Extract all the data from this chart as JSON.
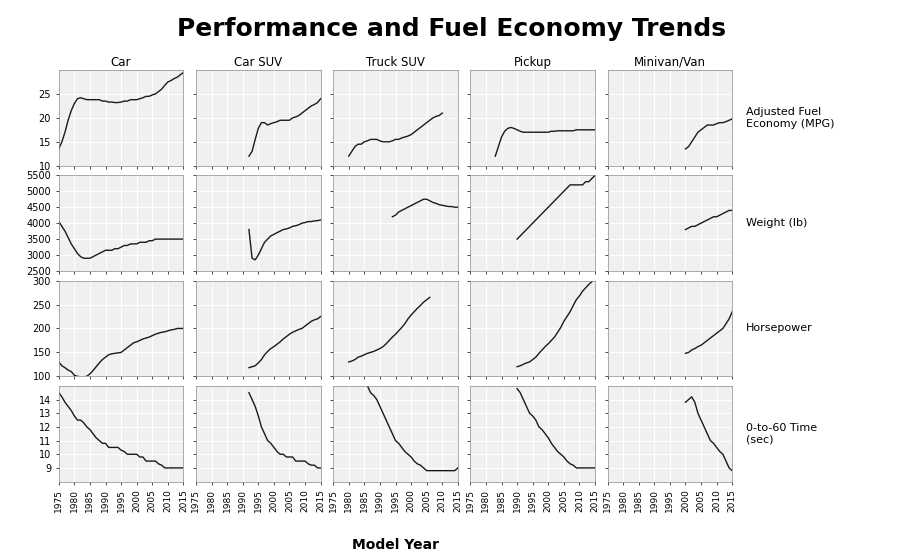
{
  "title": "Performance and Fuel Economy Trends",
  "col_labels": [
    "Car",
    "Car SUV",
    "Truck SUV",
    "Pickup",
    "Minivan/Van"
  ],
  "row_labels": [
    "Adjusted Fuel\nEconomy (MPG)",
    "Weight (lb)",
    "Horsepower",
    "0-to-60 Time\n(sec)"
  ],
  "xlabel": "Model Year",
  "xticks": [
    1975,
    1980,
    1985,
    1990,
    1995,
    2000,
    2005,
    2010,
    2015
  ],
  "ylims": {
    "mpg": [
      10,
      30
    ],
    "weight": [
      2500,
      5500
    ],
    "hp": [
      100,
      300
    ],
    "time060": [
      8,
      15
    ]
  },
  "yticks": {
    "mpg": [
      10,
      15,
      20,
      25
    ],
    "weight": [
      2500,
      3000,
      3500,
      4000,
      4500,
      5000,
      5500
    ],
    "hp": [
      100,
      150,
      200,
      250,
      300
    ],
    "time060": [
      9,
      10,
      11,
      12,
      13,
      14
    ]
  },
  "bg_color": "#f0f0f0",
  "line_color": "#1a1a1a",
  "grid_color": "#ffffff"
}
